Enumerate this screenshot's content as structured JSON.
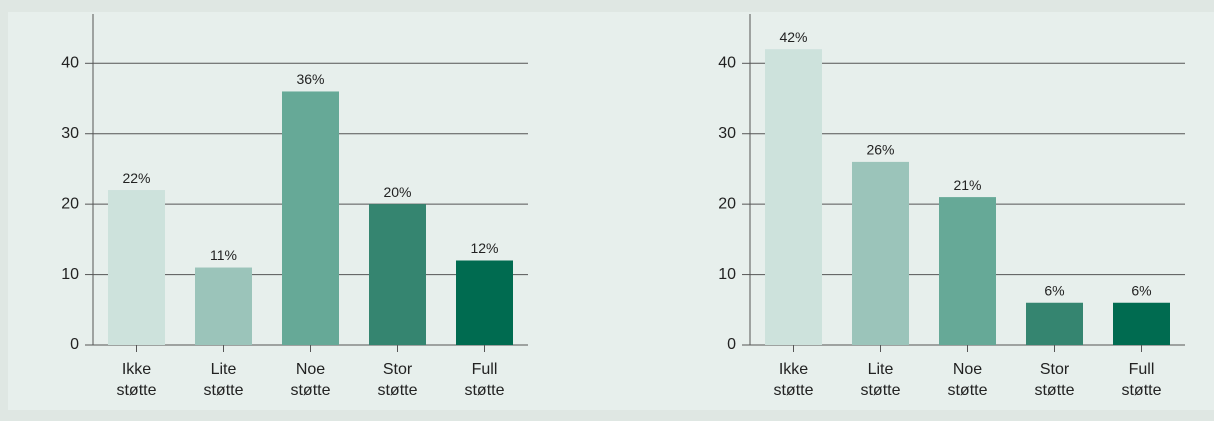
{
  "chart_data": [
    {
      "type": "bar",
      "categories": [
        "Ikke støtte",
        "Lite støtte",
        "Noe støtte",
        "Stor støtte",
        "Full støtte"
      ],
      "values": [
        22,
        11,
        36,
        20,
        12
      ],
      "value_labels": [
        "22%",
        "11%",
        "36%",
        "20%",
        "12%"
      ],
      "colors": [
        "#cde2dc",
        "#9bc4ba",
        "#66a997",
        "#358570",
        "#006b50"
      ],
      "ylim": [
        0,
        47
      ],
      "yticks": [
        0,
        10,
        20,
        30,
        40
      ],
      "grid": true
    },
    {
      "type": "bar",
      "categories": [
        "Ikke støtte",
        "Lite støtte",
        "Noe støtte",
        "Stor støtte",
        "Full støtte"
      ],
      "values": [
        42,
        26,
        21,
        6,
        6
      ],
      "value_labels": [
        "42%",
        "26%",
        "21%",
        "6%",
        "6%"
      ],
      "colors": [
        "#cde2dc",
        "#9bc4ba",
        "#66a997",
        "#358570",
        "#006b50"
      ],
      "ylim": [
        0,
        47
      ],
      "yticks": [
        0,
        10,
        20,
        30,
        40
      ],
      "grid": true
    }
  ]
}
